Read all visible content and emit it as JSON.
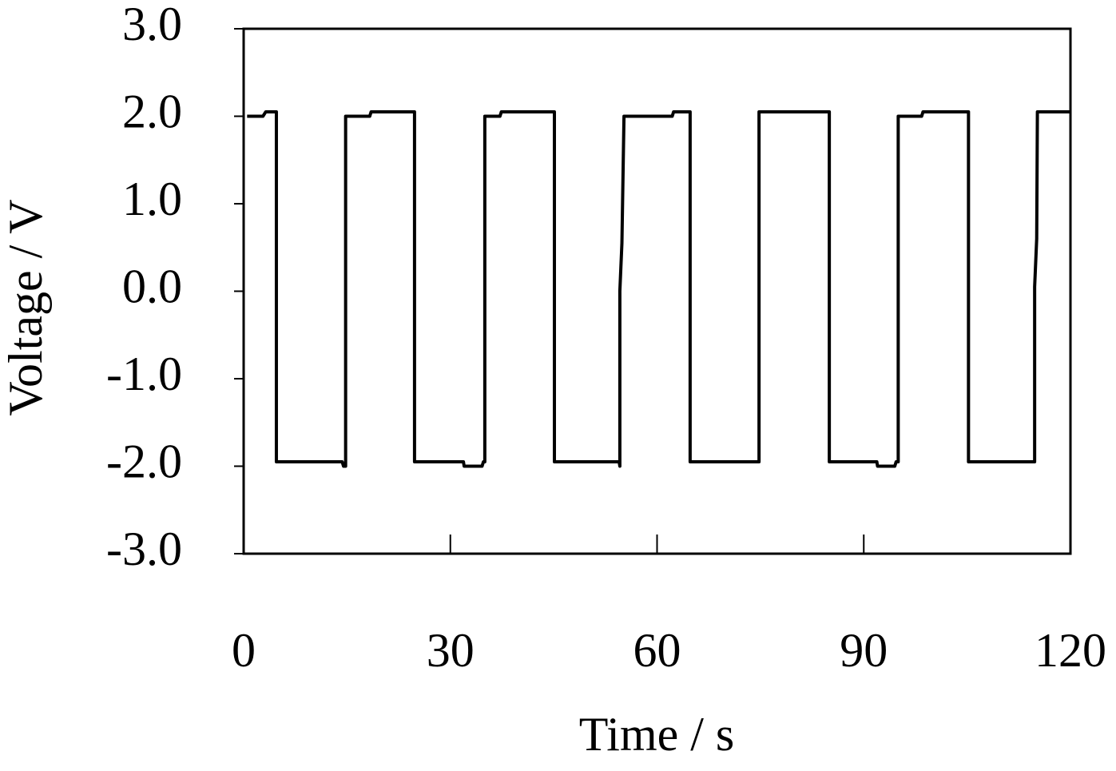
{
  "chart_data": {
    "type": "line",
    "x_label": "Time / s",
    "y_label": "Voltage / V",
    "x": [
      0.5,
      2.8,
      3.2,
      4.75,
      4.75,
      14.3,
      14.5,
      14.8,
      14.8,
      18.3,
      18.5,
      24.8,
      24.8,
      31.9,
      32.0,
      34.6,
      34.8,
      35.0,
      35.0,
      37.2,
      37.4,
      45.1,
      45.1,
      54.5,
      54.6,
      54.6,
      54.9,
      55.2,
      62.2,
      62.4,
      64.8,
      64.8,
      74.8,
      74.8,
      85.0,
      85.0,
      91.9,
      92.0,
      94.5,
      94.7,
      95.0,
      95.0,
      98.4,
      98.6,
      105.2,
      105.2,
      114.8,
      114.8,
      115.1,
      115.2,
      120
    ],
    "series": [
      {
        "name": "Voltage",
        "color": "#000000",
        "values": [
          2.0,
          2.0,
          2.05,
          2.05,
          -1.95,
          -1.95,
          -2.0,
          -2.0,
          2.0,
          2.0,
          2.05,
          2.05,
          -1.95,
          -1.95,
          -2.0,
          -2.0,
          -1.95,
          -1.95,
          2.0,
          2.0,
          2.05,
          2.05,
          -1.95,
          -1.95,
          -2.0,
          0.0,
          0.55,
          2.0,
          2.0,
          2.05,
          2.05,
          -1.95,
          -1.95,
          2.05,
          2.05,
          -1.95,
          -1.95,
          -2.0,
          -2.0,
          -1.95,
          -1.95,
          2.0,
          2.0,
          2.05,
          2.05,
          -1.95,
          -1.95,
          0.05,
          0.6,
          2.05,
          2.05
        ]
      }
    ],
    "xlim": [
      0,
      120
    ],
    "xticks": [
      0,
      30,
      60,
      90,
      120
    ],
    "ylim": [
      -3,
      3
    ],
    "yticks": [
      {
        "value": 3,
        "label": "3.0"
      },
      {
        "value": 2,
        "label": "2.0"
      },
      {
        "value": 1,
        "label": "1.0"
      },
      {
        "value": 0,
        "label": "0.0"
      },
      {
        "value": -1,
        "label": "-1.0"
      },
      {
        "value": -2,
        "label": "-2.0"
      },
      {
        "value": -3,
        "label": "-3.0"
      }
    ]
  }
}
